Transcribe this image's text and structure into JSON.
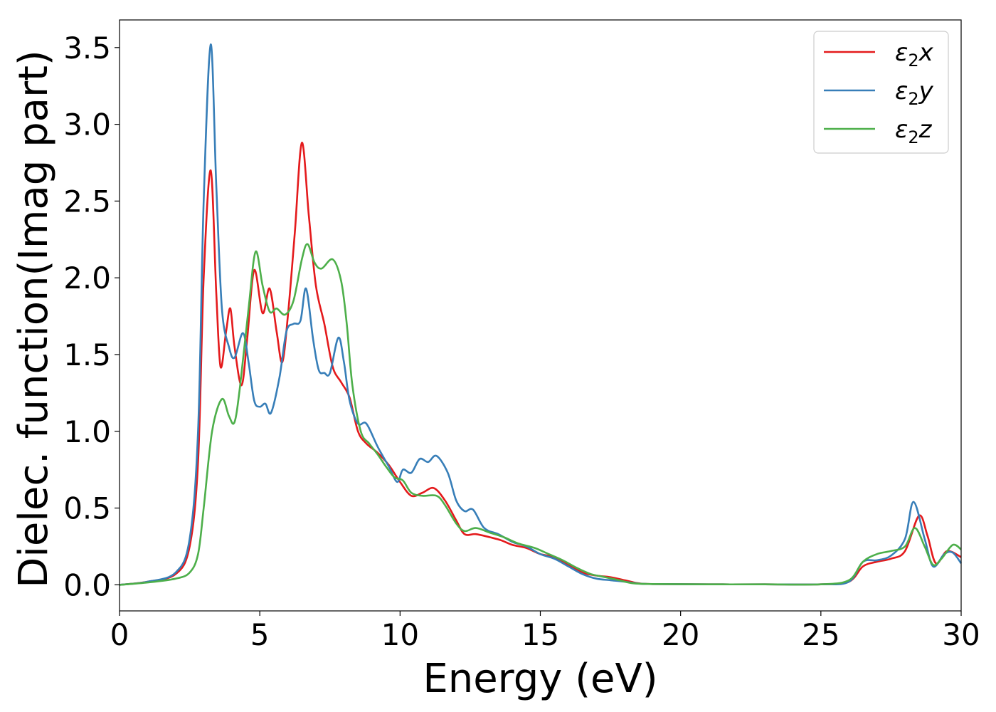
{
  "chart_data": {
    "type": "line",
    "title": "",
    "xlabel": "Energy (eV)",
    "ylabel": "Dielec. function(Imag part)",
    "xlim": [
      0,
      30
    ],
    "ylim": [
      -0.17,
      3.68
    ],
    "xticks": [
      0,
      5,
      10,
      15,
      20,
      25,
      30
    ],
    "yticks": [
      0.0,
      0.5,
      1.0,
      1.5,
      2.0,
      2.5,
      3.0,
      3.5
    ],
    "xtick_labels": [
      "0",
      "5",
      "10",
      "15",
      "20",
      "25",
      "30"
    ],
    "ytick_labels": [
      "0.0",
      "0.5",
      "1.0",
      "1.5",
      "2.0",
      "2.5",
      "3.0",
      "3.5"
    ],
    "grid": false,
    "legend_position": "top-right",
    "series": [
      {
        "name": "ε2x",
        "legend_main": "ε",
        "legend_sub": "2",
        "legend_suffix": "x",
        "color": "#e41a1c",
        "points": [
          [
            0,
            0
          ],
          [
            1,
            0.02
          ],
          [
            2,
            0.07
          ],
          [
            2.5,
            0.25
          ],
          [
            2.8,
            0.8
          ],
          [
            3.0,
            2.0
          ],
          [
            3.25,
            2.7
          ],
          [
            3.45,
            1.9
          ],
          [
            3.6,
            1.42
          ],
          [
            3.8,
            1.65
          ],
          [
            3.95,
            1.8
          ],
          [
            4.1,
            1.55
          ],
          [
            4.35,
            1.3
          ],
          [
            4.55,
            1.6
          ],
          [
            4.8,
            2.05
          ],
          [
            5.1,
            1.77
          ],
          [
            5.35,
            1.93
          ],
          [
            5.6,
            1.65
          ],
          [
            5.8,
            1.45
          ],
          [
            6.0,
            1.75
          ],
          [
            6.25,
            2.3
          ],
          [
            6.5,
            2.88
          ],
          [
            6.75,
            2.4
          ],
          [
            7.0,
            1.95
          ],
          [
            7.3,
            1.7
          ],
          [
            7.6,
            1.42
          ],
          [
            7.9,
            1.32
          ],
          [
            8.2,
            1.22
          ],
          [
            8.5,
            1.0
          ],
          [
            8.8,
            0.92
          ],
          [
            9.2,
            0.86
          ],
          [
            9.6,
            0.78
          ],
          [
            10.0,
            0.67
          ],
          [
            10.4,
            0.58
          ],
          [
            10.8,
            0.6
          ],
          [
            11.2,
            0.63
          ],
          [
            11.6,
            0.55
          ],
          [
            12.0,
            0.42
          ],
          [
            12.3,
            0.33
          ],
          [
            12.7,
            0.33
          ],
          [
            13.2,
            0.31
          ],
          [
            13.6,
            0.29
          ],
          [
            14.0,
            0.26
          ],
          [
            14.5,
            0.24
          ],
          [
            15.0,
            0.2
          ],
          [
            15.5,
            0.18
          ],
          [
            16.0,
            0.13
          ],
          [
            16.5,
            0.08
          ],
          [
            17.0,
            0.06
          ],
          [
            17.5,
            0.05
          ],
          [
            18.0,
            0.03
          ],
          [
            18.5,
            0.01
          ],
          [
            19.0,
            0.005
          ],
          [
            21,
            0.003
          ],
          [
            23,
            0.003
          ],
          [
            25,
            0.003
          ],
          [
            26.0,
            0.02
          ],
          [
            26.5,
            0.12
          ],
          [
            27.0,
            0.15
          ],
          [
            27.5,
            0.17
          ],
          [
            28.0,
            0.22
          ],
          [
            28.5,
            0.45
          ],
          [
            28.8,
            0.32
          ],
          [
            29.1,
            0.14
          ],
          [
            29.5,
            0.22
          ],
          [
            30,
            0.18
          ]
        ]
      },
      {
        "name": "ε2y",
        "legend_main": "ε",
        "legend_sub": "2",
        "legend_suffix": "y",
        "color": "#377eb8",
        "points": [
          [
            0,
            0
          ],
          [
            1,
            0.02
          ],
          [
            2,
            0.08
          ],
          [
            2.5,
            0.3
          ],
          [
            2.8,
            1.0
          ],
          [
            3.0,
            2.5
          ],
          [
            3.25,
            3.52
          ],
          [
            3.45,
            2.6
          ],
          [
            3.65,
            1.8
          ],
          [
            3.9,
            1.55
          ],
          [
            4.1,
            1.48
          ],
          [
            4.4,
            1.64
          ],
          [
            4.6,
            1.45
          ],
          [
            4.8,
            1.2
          ],
          [
            5.0,
            1.16
          ],
          [
            5.2,
            1.18
          ],
          [
            5.4,
            1.12
          ],
          [
            5.7,
            1.35
          ],
          [
            5.95,
            1.65
          ],
          [
            6.2,
            1.7
          ],
          [
            6.45,
            1.72
          ],
          [
            6.65,
            1.93
          ],
          [
            6.9,
            1.6
          ],
          [
            7.1,
            1.4
          ],
          [
            7.3,
            1.38
          ],
          [
            7.5,
            1.38
          ],
          [
            7.8,
            1.61
          ],
          [
            8.0,
            1.45
          ],
          [
            8.2,
            1.2
          ],
          [
            8.5,
            1.05
          ],
          [
            8.8,
            1.05
          ],
          [
            9.2,
            0.9
          ],
          [
            9.6,
            0.77
          ],
          [
            9.9,
            0.67
          ],
          [
            10.1,
            0.75
          ],
          [
            10.4,
            0.73
          ],
          [
            10.7,
            0.82
          ],
          [
            11.0,
            0.8
          ],
          [
            11.3,
            0.84
          ],
          [
            11.7,
            0.73
          ],
          [
            12.0,
            0.55
          ],
          [
            12.3,
            0.48
          ],
          [
            12.6,
            0.49
          ],
          [
            13.0,
            0.37
          ],
          [
            13.5,
            0.33
          ],
          [
            14.0,
            0.28
          ],
          [
            14.5,
            0.25
          ],
          [
            15.0,
            0.2
          ],
          [
            15.5,
            0.17
          ],
          [
            16.0,
            0.12
          ],
          [
            16.5,
            0.07
          ],
          [
            17.0,
            0.04
          ],
          [
            17.5,
            0.03
          ],
          [
            18.0,
            0.02
          ],
          [
            18.5,
            0.008
          ],
          [
            19.0,
            0.005
          ],
          [
            21,
            0.003
          ],
          [
            23,
            0.003
          ],
          [
            25,
            0.003
          ],
          [
            26.0,
            0.02
          ],
          [
            26.5,
            0.15
          ],
          [
            27.0,
            0.16
          ],
          [
            27.5,
            0.19
          ],
          [
            28.0,
            0.3
          ],
          [
            28.3,
            0.54
          ],
          [
            28.7,
            0.3
          ],
          [
            29.0,
            0.12
          ],
          [
            29.4,
            0.2
          ],
          [
            29.7,
            0.21
          ],
          [
            30,
            0.14
          ]
        ]
      },
      {
        "name": "ε2z",
        "legend_main": "ε",
        "legend_sub": "2",
        "legend_suffix": "z",
        "color": "#4daf4a",
        "points": [
          [
            0,
            0
          ],
          [
            1,
            0.015
          ],
          [
            2,
            0.04
          ],
          [
            2.5,
            0.08
          ],
          [
            2.8,
            0.2
          ],
          [
            3.0,
            0.5
          ],
          [
            3.3,
            1.0
          ],
          [
            3.65,
            1.21
          ],
          [
            3.9,
            1.1
          ],
          [
            4.1,
            1.06
          ],
          [
            4.3,
            1.3
          ],
          [
            4.6,
            1.8
          ],
          [
            4.85,
            2.17
          ],
          [
            5.1,
            1.95
          ],
          [
            5.35,
            1.78
          ],
          [
            5.6,
            1.8
          ],
          [
            5.9,
            1.76
          ],
          [
            6.2,
            1.85
          ],
          [
            6.5,
            2.12
          ],
          [
            6.7,
            2.22
          ],
          [
            6.95,
            2.1
          ],
          [
            7.2,
            2.06
          ],
          [
            7.6,
            2.12
          ],
          [
            7.9,
            1.98
          ],
          [
            8.1,
            1.7
          ],
          [
            8.3,
            1.3
          ],
          [
            8.6,
            1.0
          ],
          [
            8.9,
            0.92
          ],
          [
            9.2,
            0.85
          ],
          [
            9.5,
            0.77
          ],
          [
            9.8,
            0.7
          ],
          [
            10.1,
            0.68
          ],
          [
            10.4,
            0.6
          ],
          [
            10.8,
            0.58
          ],
          [
            11.3,
            0.58
          ],
          [
            11.6,
            0.52
          ],
          [
            12.0,
            0.4
          ],
          [
            12.3,
            0.35
          ],
          [
            12.7,
            0.37
          ],
          [
            13.2,
            0.34
          ],
          [
            13.7,
            0.31
          ],
          [
            14.2,
            0.27
          ],
          [
            14.8,
            0.24
          ],
          [
            15.3,
            0.2
          ],
          [
            15.8,
            0.16
          ],
          [
            16.3,
            0.11
          ],
          [
            16.8,
            0.07
          ],
          [
            17.3,
            0.05
          ],
          [
            17.8,
            0.03
          ],
          [
            18.3,
            0.01
          ],
          [
            19.0,
            0.005
          ],
          [
            21,
            0.003
          ],
          [
            23,
            0.003
          ],
          [
            25,
            0.003
          ],
          [
            26.0,
            0.03
          ],
          [
            26.5,
            0.15
          ],
          [
            27.0,
            0.2
          ],
          [
            27.5,
            0.22
          ],
          [
            28.0,
            0.25
          ],
          [
            28.35,
            0.37
          ],
          [
            28.7,
            0.25
          ],
          [
            29.0,
            0.13
          ],
          [
            29.3,
            0.17
          ],
          [
            29.7,
            0.26
          ],
          [
            30,
            0.23
          ]
        ]
      }
    ]
  }
}
